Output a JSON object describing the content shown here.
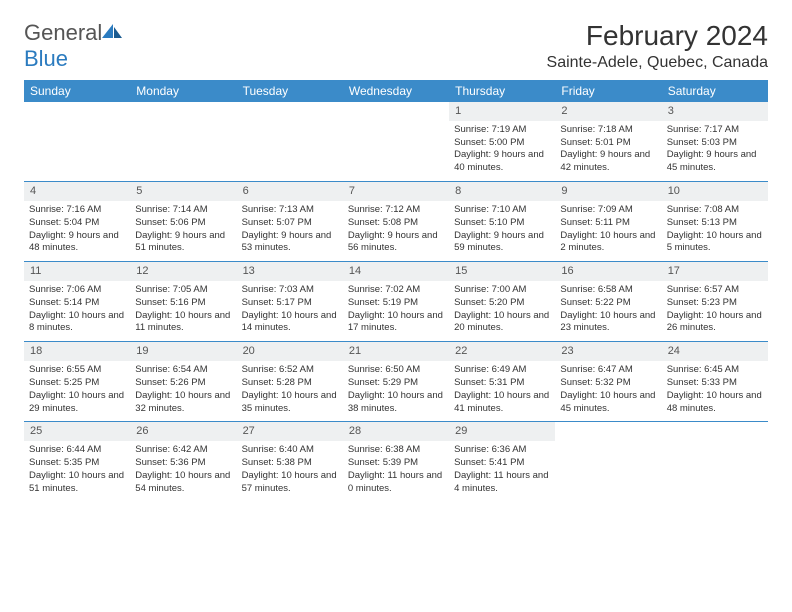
{
  "logo": {
    "text1": "General",
    "text2": "Blue"
  },
  "title": "February 2024",
  "location": "Sainte-Adele, Quebec, Canada",
  "colors": {
    "header_bg": "#3b8bc9",
    "header_fg": "#ffffff",
    "daynum_bg": "#eef0f1",
    "border": "#3b8bc9",
    "logo_gray": "#555555",
    "logo_blue": "#2b7bbf"
  },
  "weekdays": [
    "Sunday",
    "Monday",
    "Tuesday",
    "Wednesday",
    "Thursday",
    "Friday",
    "Saturday"
  ],
  "weeks": [
    [
      null,
      null,
      null,
      null,
      {
        "n": "1",
        "sr": "7:19 AM",
        "ss": "5:00 PM",
        "dl": "9 hours and 40 minutes."
      },
      {
        "n": "2",
        "sr": "7:18 AM",
        "ss": "5:01 PM",
        "dl": "9 hours and 42 minutes."
      },
      {
        "n": "3",
        "sr": "7:17 AM",
        "ss": "5:03 PM",
        "dl": "9 hours and 45 minutes."
      }
    ],
    [
      {
        "n": "4",
        "sr": "7:16 AM",
        "ss": "5:04 PM",
        "dl": "9 hours and 48 minutes."
      },
      {
        "n": "5",
        "sr": "7:14 AM",
        "ss": "5:06 PM",
        "dl": "9 hours and 51 minutes."
      },
      {
        "n": "6",
        "sr": "7:13 AM",
        "ss": "5:07 PM",
        "dl": "9 hours and 53 minutes."
      },
      {
        "n": "7",
        "sr": "7:12 AM",
        "ss": "5:08 PM",
        "dl": "9 hours and 56 minutes."
      },
      {
        "n": "8",
        "sr": "7:10 AM",
        "ss": "5:10 PM",
        "dl": "9 hours and 59 minutes."
      },
      {
        "n": "9",
        "sr": "7:09 AM",
        "ss": "5:11 PM",
        "dl": "10 hours and 2 minutes."
      },
      {
        "n": "10",
        "sr": "7:08 AM",
        "ss": "5:13 PM",
        "dl": "10 hours and 5 minutes."
      }
    ],
    [
      {
        "n": "11",
        "sr": "7:06 AM",
        "ss": "5:14 PM",
        "dl": "10 hours and 8 minutes."
      },
      {
        "n": "12",
        "sr": "7:05 AM",
        "ss": "5:16 PM",
        "dl": "10 hours and 11 minutes."
      },
      {
        "n": "13",
        "sr": "7:03 AM",
        "ss": "5:17 PM",
        "dl": "10 hours and 14 minutes."
      },
      {
        "n": "14",
        "sr": "7:02 AM",
        "ss": "5:19 PM",
        "dl": "10 hours and 17 minutes."
      },
      {
        "n": "15",
        "sr": "7:00 AM",
        "ss": "5:20 PM",
        "dl": "10 hours and 20 minutes."
      },
      {
        "n": "16",
        "sr": "6:58 AM",
        "ss": "5:22 PM",
        "dl": "10 hours and 23 minutes."
      },
      {
        "n": "17",
        "sr": "6:57 AM",
        "ss": "5:23 PM",
        "dl": "10 hours and 26 minutes."
      }
    ],
    [
      {
        "n": "18",
        "sr": "6:55 AM",
        "ss": "5:25 PM",
        "dl": "10 hours and 29 minutes."
      },
      {
        "n": "19",
        "sr": "6:54 AM",
        "ss": "5:26 PM",
        "dl": "10 hours and 32 minutes."
      },
      {
        "n": "20",
        "sr": "6:52 AM",
        "ss": "5:28 PM",
        "dl": "10 hours and 35 minutes."
      },
      {
        "n": "21",
        "sr": "6:50 AM",
        "ss": "5:29 PM",
        "dl": "10 hours and 38 minutes."
      },
      {
        "n": "22",
        "sr": "6:49 AM",
        "ss": "5:31 PM",
        "dl": "10 hours and 41 minutes."
      },
      {
        "n": "23",
        "sr": "6:47 AM",
        "ss": "5:32 PM",
        "dl": "10 hours and 45 minutes."
      },
      {
        "n": "24",
        "sr": "6:45 AM",
        "ss": "5:33 PM",
        "dl": "10 hours and 48 minutes."
      }
    ],
    [
      {
        "n": "25",
        "sr": "6:44 AM",
        "ss": "5:35 PM",
        "dl": "10 hours and 51 minutes."
      },
      {
        "n": "26",
        "sr": "6:42 AM",
        "ss": "5:36 PM",
        "dl": "10 hours and 54 minutes."
      },
      {
        "n": "27",
        "sr": "6:40 AM",
        "ss": "5:38 PM",
        "dl": "10 hours and 57 minutes."
      },
      {
        "n": "28",
        "sr": "6:38 AM",
        "ss": "5:39 PM",
        "dl": "11 hours and 0 minutes."
      },
      {
        "n": "29",
        "sr": "6:36 AM",
        "ss": "5:41 PM",
        "dl": "11 hours and 4 minutes."
      },
      null,
      null
    ]
  ],
  "labels": {
    "sunrise": "Sunrise: ",
    "sunset": "Sunset: ",
    "daylight": "Daylight: "
  }
}
